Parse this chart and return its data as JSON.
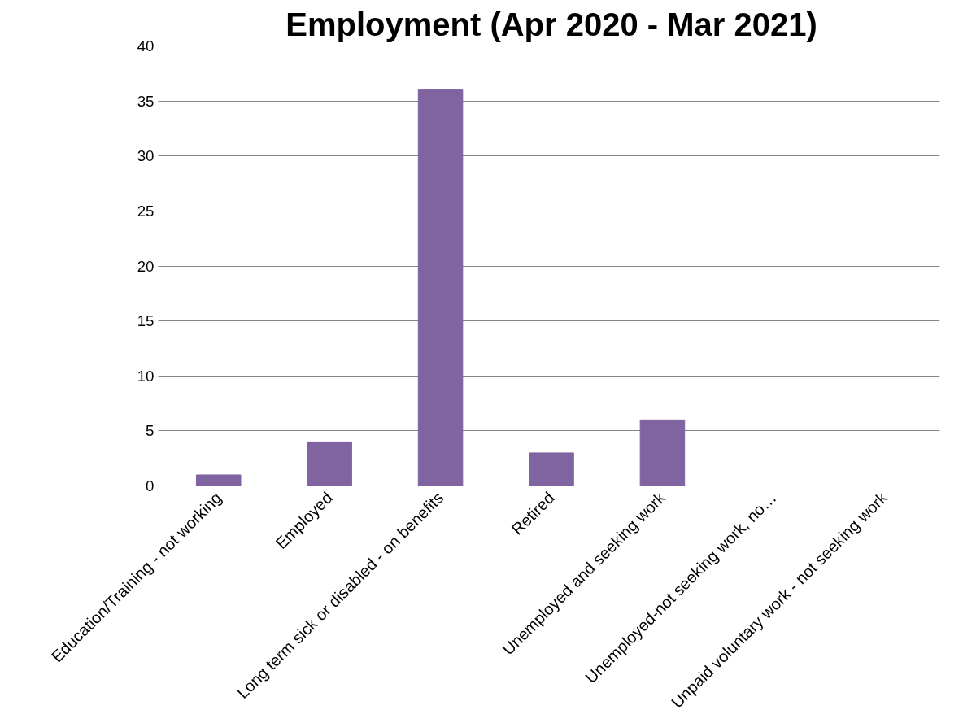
{
  "chart_data": {
    "type": "bar",
    "title": "Employment (Apr 2020 - Mar 2021)",
    "categories": [
      "Education/Training - not working",
      "Employed",
      "Long term sick or disabled - on benefits",
      "Retired",
      "Unemployed and seeking work",
      "Unemployed-not seeking work, no…",
      "Unpaid voluntary work - not seeking work"
    ],
    "values": [
      1,
      4,
      36,
      3,
      6,
      0,
      0
    ],
    "color": "#8064a2",
    "ylim": [
      0,
      40
    ],
    "yticks": [
      0,
      5,
      10,
      15,
      20,
      25,
      30,
      35,
      40
    ],
    "grid": "y"
  }
}
